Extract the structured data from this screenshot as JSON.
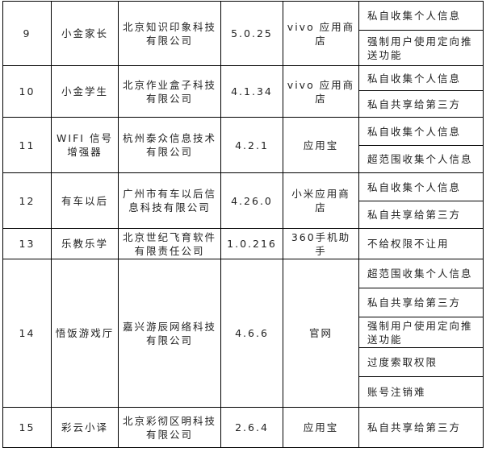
{
  "rows": [
    {
      "no": "9",
      "app": "小金家长",
      "company": "北京知识印象科技有限公司",
      "version": "5.0.25",
      "source": "vivo 应用商店",
      "issues": [
        "私自收集个人信息",
        "强制用户使用定向推送功能"
      ]
    },
    {
      "no": "10",
      "app": "小金学生",
      "company": "北京作业盒子科技有限公司",
      "version": "4.1.34",
      "source": "vivo 应用商店",
      "issues": [
        "私自收集个人信息",
        "私自共享给第三方"
      ]
    },
    {
      "no": "11",
      "app": "WIFI 信号增强器",
      "company": "杭州泰众信息技术有限公司",
      "version": "4.2.1",
      "source": "应用宝",
      "issues": [
        "私自收集个人信息",
        "超范围收集个人信息"
      ]
    },
    {
      "no": "12",
      "app": "有车以后",
      "company": "广州市有车以后信息科技有限公司",
      "version": "4.26.0",
      "source": "小米应用商店",
      "issues": [
        "私自收集个人信息",
        "私自共享给第三方"
      ]
    },
    {
      "no": "13",
      "app": "乐教乐学",
      "company": "北京世纪飞育软件有限责任公司",
      "version": "1.0.216",
      "source": "360手机助手",
      "issues": [
        "不给权限不让用"
      ]
    },
    {
      "no": "14",
      "app": "悟饭游戏厅",
      "company": "嘉兴游辰网络科技有限公司",
      "version": "4.6.6",
      "source": "官网",
      "issues": [
        "超范围收集个人信息",
        "私自共享给第三方",
        "强制用户使用定向推送功能",
        "过度索取权限",
        "账号注销难"
      ]
    },
    {
      "no": "15",
      "app": "彩云小译",
      "company": "北京彩彻区明科技有限公司",
      "version": "2.6.4",
      "source": "应用宝",
      "issues": [
        "私自共享给第三方"
      ]
    }
  ]
}
